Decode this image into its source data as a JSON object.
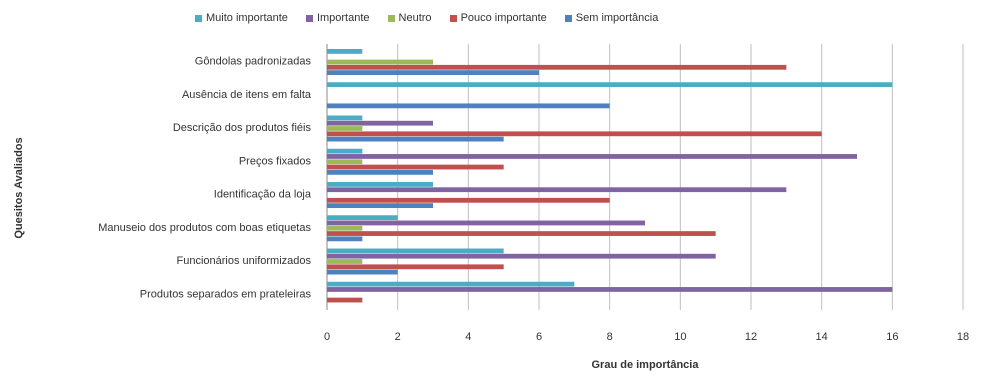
{
  "chart_data": {
    "type": "bar",
    "orientation": "horizontal",
    "xlabel": "Grau de importância",
    "ylabel": "Quesitos Avaliados",
    "xlim": [
      0,
      18
    ],
    "xticks": [
      0,
      2,
      4,
      6,
      8,
      10,
      12,
      14,
      16,
      18
    ],
    "grid": true,
    "legend_position": "top",
    "categories": [
      "Gôndolas padronizadas",
      "Ausência de itens em falta",
      "Descrição dos produtos fiéis",
      "Preços fixados",
      "Identificação da loja",
      "Manuseio dos produtos com boas etiquetas",
      "Funcionários uniformizados",
      "Produtos separados em prateleiras"
    ],
    "series": [
      {
        "name": "Muito importante",
        "color": "#4bacc6",
        "values": [
          1,
          16,
          1,
          1,
          3,
          2,
          5,
          7
        ]
      },
      {
        "name": "Importante",
        "color": "#8064a2",
        "values": [
          0,
          0,
          3,
          15,
          13,
          9,
          11,
          16
        ]
      },
      {
        "name": "Neutro",
        "color": "#9bbb59",
        "values": [
          3,
          0,
          1,
          1,
          0,
          1,
          1,
          0
        ]
      },
      {
        "name": "Pouco importante",
        "color": "#c0504d",
        "values": [
          13,
          0,
          14,
          5,
          8,
          11,
          5,
          1
        ]
      },
      {
        "name": "Sem importância",
        "color": "#4f81bd",
        "values": [
          6,
          8,
          5,
          3,
          3,
          1,
          2,
          0
        ]
      }
    ]
  }
}
